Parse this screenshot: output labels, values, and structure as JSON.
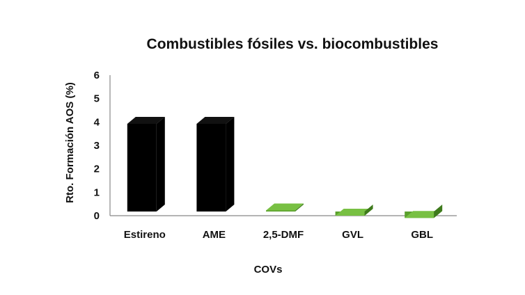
{
  "chart_data": {
    "type": "bar",
    "title": "Combustibles fósiles vs. biocombustibles",
    "xlabel": "COVs",
    "ylabel": "Rto. Formación AOS (%)",
    "categories": [
      "Estireno",
      "AME",
      "2,5-DMF",
      "GVL",
      "GBL"
    ],
    "values": [
      4.1,
      4.1,
      0.4,
      0.18,
      0.08
    ],
    "ylim": [
      0,
      6
    ],
    "yticks": [
      "0",
      "1",
      "2",
      "3",
      "4",
      "5",
      "6"
    ],
    "grid": false,
    "style": "3d-column",
    "colors": [
      "#000000",
      "#000000",
      "#5aa02c",
      "#5aa02c",
      "#5aa02c"
    ]
  }
}
